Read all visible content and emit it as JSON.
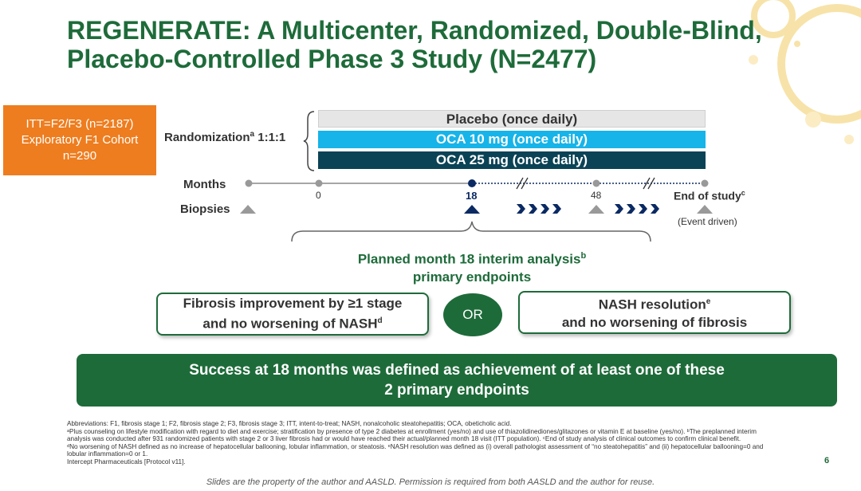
{
  "title": {
    "line1": "REGENERATE: A Multicenter, Randomized, Double-Blind,",
    "line2": "Placebo-Controlled Phase 3 Study (N=2477)"
  },
  "itt_box": {
    "line1": "ITT=F2/F3 (n=2187)",
    "line2": "Exploratory F1 Cohort",
    "line3": "n=290"
  },
  "randomization": {
    "label": "Randomization",
    "sup": "a",
    "ratio": " 1:1:1"
  },
  "arms": {
    "placebo": "Placebo (once daily)",
    "oca10": "OCA 10 mg (once daily)",
    "oca25": "OCA 25 mg (once daily)"
  },
  "timeline": {
    "months_label": "Months",
    "biopsies_label": "Biopsies",
    "tick_0": "0",
    "tick_18": "18",
    "tick_48": "48",
    "end_of_study": "End of study",
    "end_sup": "c",
    "event_driven": "(Event driven)"
  },
  "interim": {
    "line1": "Planned month 18 interim analysis",
    "sup": "b",
    "line2": "primary endpoints"
  },
  "endpoints": {
    "ep1_line1": "Fibrosis improvement by ≥1 stage",
    "ep1_line2": "and no worsening of NASH",
    "ep1_sup": "d",
    "or": "OR",
    "ep2_line1": "NASH resolution",
    "ep2_sup": "e",
    "ep2_line2": "and no worsening of fibrosis"
  },
  "success": {
    "line1": "Success at 18 months was defined as achievement of at least one of these",
    "line2": "2 primary endpoints"
  },
  "notes": [
    "Abbreviations: F1, fibrosis stage 1; F2, fibrosis stage 2; F3, fibrosis stage 3; ITT, intent-to-treat; NASH, nonalcoholic steatohepatitis; OCA, obeticholic acid.",
    "ᵃPlus counseling on lifestyle modification with regard to diet and exercise; stratification by presence of type 2 diabetes at enrollment (yes/no) and use of thiazolidinediones/glitazones or vitamin E at baseline (yes/no). ᵇThe preplanned interim",
    "analysis was conducted after 931 randomized patients with stage 2 or 3 liver fibrosis had or would have reached their actual/planned month 18 visit (ITT population). ᶜEnd of study analysis of clinical outcomes to confirm clinical benefit.",
    "ᵈNo worsening of NASH defined as no increase of hepatocellular ballooning, lobular inflammation, or steatosis. ᵉNASH resolution was defined as (i) overall pathologist assessment of “no steatohepatitis” and (ii) hepatocellular ballooning=0 and",
    "lobular inflammation=0 or 1.",
    "Intercept Pharmaceuticals [Protocol v11]."
  ],
  "page_number": "6",
  "footer": "Slides are the property of the author and AASLD. Permission is required from both AASLD and the author for reuse.",
  "colors": {
    "brand_green": "#1e6b3a",
    "orange": "#ee7d1f",
    "oca10_blue": "#16b4e9",
    "oca25_navy": "#0b4356",
    "placebo_gray": "#e6e6e6"
  }
}
